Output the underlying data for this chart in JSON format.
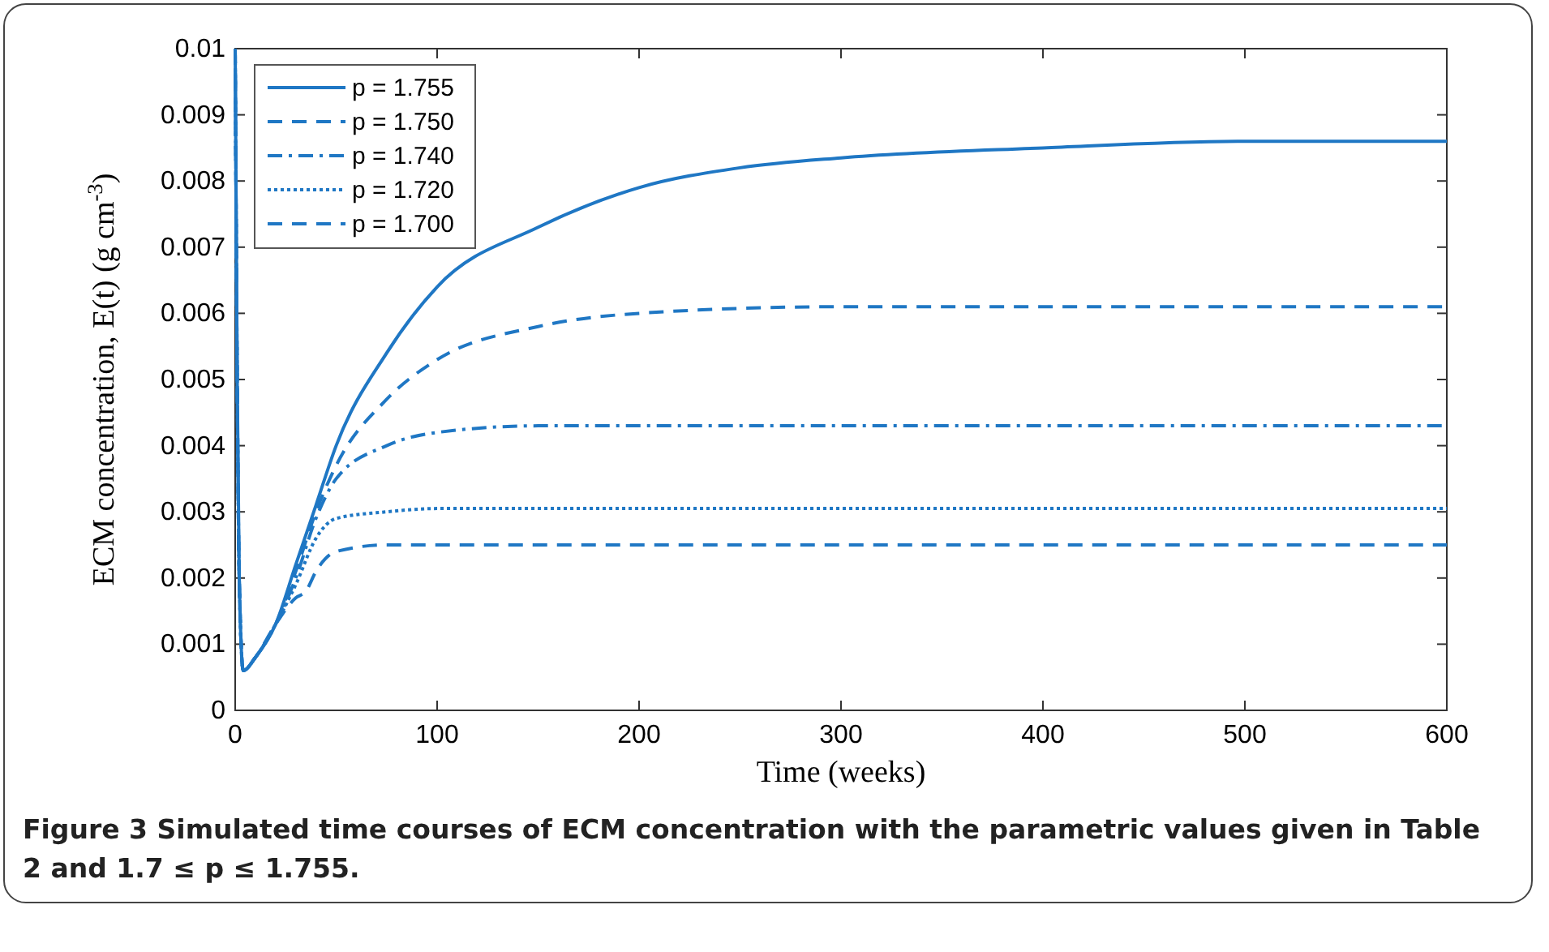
{
  "chart_data": {
    "type": "line",
    "xlabel": "Time (weeks)",
    "ylabel": "ECM concentration, E(t) (g cm$^{-3}$)",
    "xlim": [
      0,
      600
    ],
    "ylim": [
      0,
      0.01
    ],
    "xticks": [
      0,
      100,
      200,
      300,
      400,
      500,
      600
    ],
    "yticks": [
      0,
      0.001,
      0.002,
      0.003,
      0.004,
      0.005,
      0.006,
      0.007,
      0.008,
      0.009,
      0.01
    ],
    "grid": false,
    "legend": "top left",
    "marker": "none",
    "annotations": [
      "Figure 3  Simulated time courses of ECM concentration with the parametric values given in Table 2 and 1.7 ≤ p ≤ 1.755."
    ],
    "series": [
      {
        "name": "p = 1.755",
        "color": "#1f77c4",
        "line_style": "solid",
        "x": [
          0,
          1,
          2,
          4,
          10,
          20,
          30,
          40,
          50,
          75,
          100,
          150,
          200,
          250,
          300,
          400,
          500,
          600
        ],
        "values": [
          0.01,
          0.005,
          0.002,
          0.0006,
          0.0008,
          0.0013,
          0.0022,
          0.0031,
          0.004,
          0.0054,
          0.0064,
          0.0073,
          0.0079,
          0.0082,
          0.00835,
          0.0085,
          0.0086,
          0.0086
        ]
      },
      {
        "name": "p = 1.750",
        "color": "#1f77c4",
        "line_style": "dashed",
        "x": [
          0,
          1,
          2,
          4,
          10,
          20,
          30,
          40,
          50,
          75,
          100,
          150,
          200,
          300,
          400,
          600
        ],
        "values": [
          0.01,
          0.005,
          0.002,
          0.0006,
          0.0008,
          0.0013,
          0.0021,
          0.003,
          0.0037,
          0.0047,
          0.0053,
          0.0058,
          0.006,
          0.0061,
          0.0061,
          0.0061
        ]
      },
      {
        "name": "p = 1.740",
        "color": "#1f77c4",
        "line_style": "dashdot",
        "x": [
          0,
          1,
          2,
          4,
          10,
          20,
          30,
          40,
          50,
          75,
          100,
          150,
          200,
          600
        ],
        "values": [
          0.01,
          0.005,
          0.002,
          0.0006,
          0.0008,
          0.0013,
          0.002,
          0.0029,
          0.0035,
          0.004,
          0.0042,
          0.0043,
          0.0043,
          0.0043
        ]
      },
      {
        "name": "p = 1.720",
        "color": "#1f77c4",
        "line_style": "dotted",
        "x": [
          0,
          1,
          2,
          4,
          10,
          20,
          30,
          40,
          50,
          75,
          100,
          200,
          600
        ],
        "values": [
          0.01,
          0.005,
          0.002,
          0.0006,
          0.0008,
          0.0013,
          0.0019,
          0.0026,
          0.0029,
          0.003,
          0.00305,
          0.00305,
          0.00305
        ]
      },
      {
        "name": "p = 1.700",
        "color": "#1f77c4",
        "line_style": "dashed",
        "x": [
          0,
          1,
          2,
          4,
          10,
          20,
          30,
          35,
          40,
          50,
          75,
          100,
          600
        ],
        "values": [
          0.01,
          0.005,
          0.002,
          0.0006,
          0.0008,
          0.0013,
          0.0017,
          0.0018,
          0.0021,
          0.0024,
          0.0025,
          0.0025,
          0.0025
        ]
      }
    ]
  }
}
